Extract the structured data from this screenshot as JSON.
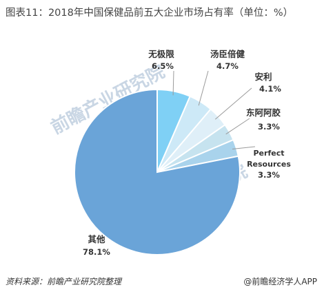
{
  "title": "图表11：2018年中国保健品前五大企业市场占有率（单位：%）",
  "chart_data": {
    "type": "pie",
    "title": "图表11：2018年中国保健品前五大企业市场占有率（单位：%）",
    "unit": "%",
    "slices": [
      {
        "label": "无极限",
        "value": 6.5,
        "display": "6.5%",
        "color": "#7fd0f5"
      },
      {
        "label": "汤臣倍健",
        "value": 4.7,
        "display": "4.7%",
        "color": "#cde9f7"
      },
      {
        "label": "安利",
        "value": 4.1,
        "display": "4.1%",
        "color": "#dfeff8"
      },
      {
        "label": "东阿阿胶",
        "value": 3.3,
        "display": "3.3%",
        "color": "#c6e3ef"
      },
      {
        "label": "Perfect Resources",
        "value": 3.3,
        "display": "3.3%",
        "color": "#a9d3ec"
      },
      {
        "label": "其他",
        "value": 78.1,
        "display": "78.1%",
        "color": "#6aa4d8"
      }
    ]
  },
  "source": "资料来源：前瞻产业研究院整理",
  "brand": "@前瞻经济学人APP",
  "watermark": "前瞻产业研究院"
}
